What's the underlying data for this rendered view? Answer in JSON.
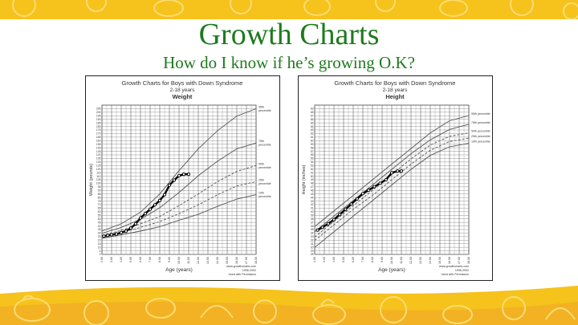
{
  "slide": {
    "title": "Growth Charts",
    "subtitle": "How do I know if he’s growing O.K?"
  },
  "colors": {
    "title_green": "#1f7a1f",
    "band_yellow": "#f6c21c",
    "band_orange": "#eea52a",
    "fruit_outline": "#fbdc72"
  },
  "chart_data": [
    {
      "type": "line",
      "title": "Growth Charts for Boys with Down Syndrome",
      "subtitle": "2-18 years",
      "measure": "Weight",
      "xlabel": "Age (years)",
      "ylabel": "Weight (pounds)",
      "xlim": [
        2,
        18
      ],
      "ylim": [
        0,
        205
      ],
      "x_ticks": [
        "2.00",
        "3.00",
        "4.00",
        "5.00",
        "6.00",
        "7.00",
        "8.00",
        "9.00",
        "10.00",
        "11.00",
        "12.00",
        "13.00",
        "14.00",
        "15.00",
        "16.00",
        "17.00",
        "18.00"
      ],
      "y_ticks": [
        0,
        5,
        10,
        15,
        20,
        25,
        30,
        35,
        40,
        45,
        50,
        55,
        60,
        65,
        70,
        75,
        80,
        85,
        90,
        95,
        100,
        105,
        110,
        115,
        120,
        125,
        130,
        135,
        140,
        145,
        150,
        155,
        160,
        165,
        170,
        175,
        180,
        185,
        190,
        195,
        200,
        205
      ],
      "credit": "www.growthcharts.com",
      "credit_years": "1996-2002",
      "credit_permission": "Used with Permission",
      "series": [
        {
          "name": "95th percentile",
          "style": "solid",
          "x": [
            2,
            4,
            6,
            8,
            10,
            12,
            14,
            16,
            18
          ],
          "y": [
            32,
            42,
            58,
            83,
            115,
            145,
            170,
            190,
            200
          ]
        },
        {
          "name": "75th percentile",
          "style": "solid",
          "x": [
            2,
            4,
            6,
            8,
            10,
            12,
            14,
            16,
            18
          ],
          "y": [
            29,
            37,
            48,
            64,
            85,
            108,
            128,
            145,
            153
          ]
        },
        {
          "name": "50th percentile",
          "style": "dashed",
          "x": [
            2,
            4,
            6,
            8,
            10,
            12,
            14,
            16,
            18
          ],
          "y": [
            26,
            33,
            42,
            52,
            67,
            83,
            100,
            114,
            122
          ]
        },
        {
          "name": "25th percentile",
          "style": "dashed",
          "x": [
            2,
            4,
            6,
            8,
            10,
            12,
            14,
            16,
            18
          ],
          "y": [
            24,
            30,
            37,
            45,
            56,
            68,
            82,
            94,
            100
          ]
        },
        {
          "name": "10th percentile",
          "style": "solid",
          "x": [
            2,
            4,
            6,
            8,
            10,
            12,
            14,
            16,
            18
          ],
          "y": [
            22,
            27,
            32,
            38,
            47,
            55,
            66,
            76,
            82
          ]
        }
      ],
      "series_labels": [
        {
          "pct": "95th",
          "word": "percentile"
        },
        {
          "pct": "75th",
          "word": "percentile"
        },
        {
          "pct": "50th",
          "word": "percentile"
        },
        {
          "pct": "25th",
          "word": "percentile"
        },
        {
          "pct": "10th",
          "word": "percentile"
        }
      ],
      "child": {
        "x": [
          2.2,
          2.6,
          3.0,
          3.5,
          4.0,
          4.5,
          5.0,
          5.5,
          6.0,
          6.5,
          7.0,
          7.5,
          8.0,
          8.5,
          9.0,
          9.5,
          10.0,
          10.5,
          11.0
        ],
        "y": [
          25,
          26,
          27,
          28,
          30,
          32,
          36,
          42,
          50,
          56,
          62,
          68,
          74,
          82,
          95,
          102,
          108,
          110,
          110
        ]
      }
    },
    {
      "type": "line",
      "title": "Growth Charts for Boys with Down Syndrome",
      "subtitle": "2-18 years",
      "measure": "Height",
      "xlabel": "Age (years)",
      "ylabel": "Height (inches)",
      "xlim": [
        2,
        18
      ],
      "ylim": [
        27,
        70
      ],
      "x_ticks": [
        "2.00",
        "3.00",
        "4.00",
        "5.00",
        "6.00",
        "7.00",
        "8.00",
        "9.00",
        "10.00",
        "11.00",
        "12.00",
        "13.00",
        "14.00",
        "15.00",
        "16.00",
        "17.00",
        "18.00"
      ],
      "y_ticks": [
        28,
        29,
        30,
        31,
        32,
        33,
        34,
        35,
        36,
        37,
        38,
        39,
        40,
        41,
        42,
        43,
        44,
        45,
        46,
        47,
        48,
        49,
        50,
        51,
        52,
        53,
        54,
        55,
        56,
        57,
        58,
        59,
        60,
        61,
        62,
        63,
        64,
        65,
        66,
        67,
        68,
        69
      ],
      "credit": "www.growthcharts.com",
      "credit_years": "1996-2002",
      "credit_permission": "Used with Permission",
      "series": [
        {
          "name": "95th percentile",
          "style": "solid",
          "x": [
            2,
            4,
            6,
            8,
            10,
            12,
            14,
            16,
            18
          ],
          "y": [
            35,
            39.5,
            44,
            48.5,
            53,
            57.5,
            62,
            65.5,
            67
          ]
        },
        {
          "name": "75th percentile",
          "style": "solid",
          "x": [
            2,
            4,
            6,
            8,
            10,
            12,
            14,
            16,
            18
          ],
          "y": [
            33.5,
            38,
            42.5,
            47,
            51.5,
            56,
            60,
            63,
            64.5
          ]
        },
        {
          "name": "50th percentile",
          "style": "dashed",
          "x": [
            2,
            4,
            6,
            8,
            10,
            12,
            14,
            16,
            18
          ],
          "y": [
            32,
            36.5,
            41,
            45.5,
            50,
            54.5,
            58.5,
            61,
            62
          ]
        },
        {
          "name": "25th percentile",
          "style": "dashed",
          "x": [
            2,
            4,
            6,
            8,
            10,
            12,
            14,
            16,
            18
          ],
          "y": [
            31,
            35.5,
            40,
            44,
            48.5,
            53,
            57,
            59.5,
            60.5
          ]
        },
        {
          "name": "10th percentile",
          "style": "solid",
          "x": [
            2,
            4,
            6,
            8,
            10,
            12,
            14,
            16,
            18
          ],
          "y": [
            29,
            33.5,
            38,
            42.5,
            47,
            51.5,
            55.5,
            58,
            59
          ]
        }
      ],
      "series_labels": [
        {
          "pct": "95th percentile",
          "word": ""
        },
        {
          "pct": "75th percentile",
          "word": ""
        },
        {
          "pct": "50th percentile",
          "word": ""
        },
        {
          "pct": "25th percentile",
          "word": ""
        },
        {
          "pct": "10th percentile",
          "word": ""
        }
      ],
      "child": {
        "x": [
          2.3,
          2.8,
          3.4,
          4.0,
          4.6,
          5.2,
          5.8,
          6.4,
          7.0,
          7.6,
          8.2,
          8.8,
          9.4,
          10.0,
          10.6,
          11.0
        ],
        "y": [
          34,
          34.8,
          35.8,
          37,
          38.5,
          40,
          41.5,
          43,
          44.5,
          45.5,
          46.5,
          47.5,
          48.5,
          50.5,
          51,
          51
        ]
      }
    }
  ]
}
